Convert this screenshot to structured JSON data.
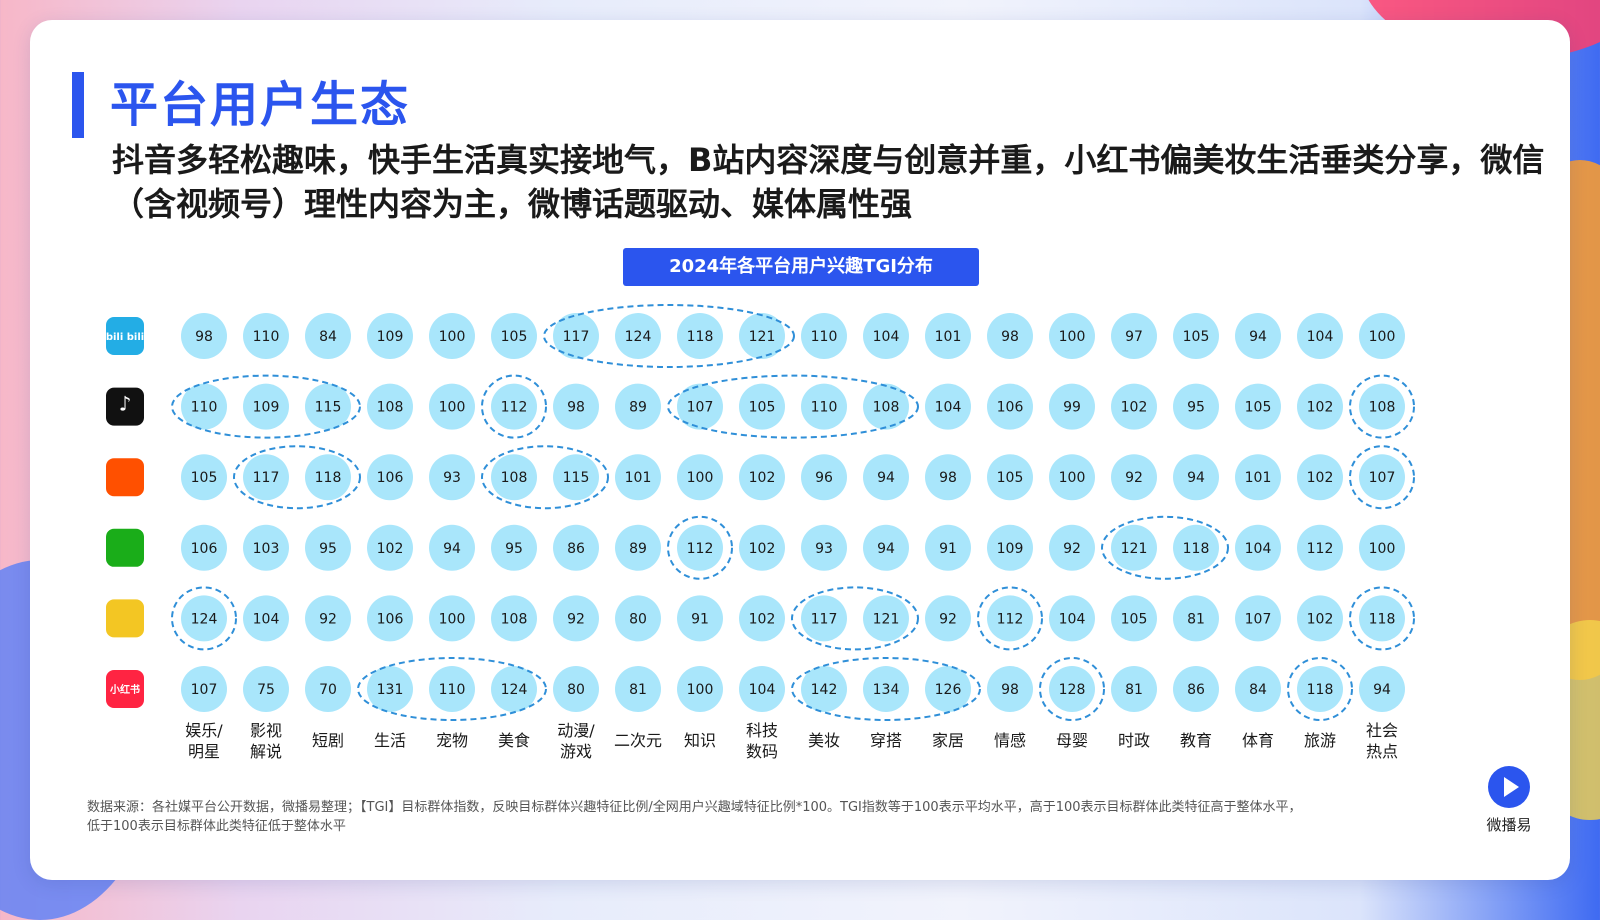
{
  "title": "平台用户生态",
  "subtitle": "抖音多轻松趣味，快手生活真实接地气，B站内容深度与创意并重，小红书偏美妆生活垂类分享，微信（含视频号）理性内容为主，微博话题驱动、媒体属性强",
  "footnote_line1": "数据来源：各社媒平台公开数据，微播易整理；【TGI】目标群体指数，反映目标群体兴趣特征比例/全网用户兴趣域特征比例*100。TGI指数等于100表示平均水平，高于100表示目标群体此类特征高于整体水平，",
  "footnote_line2": "低于100表示目标群体此类特征低于整体水平",
  "logo_text": "微播易",
  "colors": {
    "accent": "#2b55ee",
    "bubble": "#a9e6fb",
    "highlight_ring": "#2f8fd8"
  },
  "chart_data": {
    "type": "table",
    "title": "2024年各平台用户兴趣TGI分布",
    "platforms": [
      {
        "name": "bilibili",
        "icon": "bilibili-icon",
        "icon_text": "bili bili",
        "icon_color": "#23ade5"
      },
      {
        "name": "douyin",
        "icon": "douyin-icon",
        "icon_text": "♪",
        "icon_color": "#111111"
      },
      {
        "name": "kuaishou",
        "icon": "kuaishou-icon",
        "icon_text": "",
        "icon_color": "#ff5000"
      },
      {
        "name": "wechat",
        "icon": "wechat-icon",
        "icon_text": "",
        "icon_color": "#1aad19"
      },
      {
        "name": "weibo",
        "icon": "weibo-icon",
        "icon_text": "",
        "icon_color": "#f3c623"
      },
      {
        "name": "xiaohongshu",
        "icon": "xiaohongshu-icon",
        "icon_text": "小红书",
        "icon_color": "#ff2442"
      }
    ],
    "categories": [
      [
        "娱乐/",
        "明星"
      ],
      [
        "影视",
        "解说"
      ],
      [
        "短剧"
      ],
      [
        "生活"
      ],
      [
        "宠物"
      ],
      [
        "美食"
      ],
      [
        "动漫/",
        "游戏"
      ],
      [
        "二次元"
      ],
      [
        "知识"
      ],
      [
        "科技",
        "数码"
      ],
      [
        "美妆"
      ],
      [
        "穿搭"
      ],
      [
        "家居"
      ],
      [
        "情感"
      ],
      [
        "母婴"
      ],
      [
        "时政"
      ],
      [
        "教育"
      ],
      [
        "体育"
      ],
      [
        "旅游"
      ],
      [
        "社会",
        "热点"
      ]
    ],
    "values": [
      [
        98,
        110,
        84,
        109,
        100,
        105,
        117,
        124,
        118,
        121,
        110,
        104,
        101,
        98,
        100,
        97,
        105,
        94,
        104,
        100
      ],
      [
        110,
        109,
        115,
        108,
        100,
        112,
        98,
        89,
        107,
        105,
        110,
        108,
        104,
        106,
        99,
        102,
        95,
        105,
        102,
        108
      ],
      [
        105,
        117,
        118,
        106,
        93,
        108,
        115,
        101,
        100,
        102,
        96,
        94,
        98,
        105,
        100,
        92,
        94,
        101,
        102,
        107
      ],
      [
        106,
        103,
        95,
        102,
        94,
        95,
        86,
        89,
        112,
        102,
        93,
        94,
        91,
        109,
        92,
        121,
        118,
        104,
        112,
        100
      ],
      [
        124,
        104,
        92,
        106,
        100,
        108,
        92,
        80,
        91,
        102,
        117,
        121,
        92,
        112,
        104,
        105,
        81,
        107,
        102,
        118
      ],
      [
        107,
        75,
        70,
        131,
        110,
        124,
        80,
        81,
        100,
        104,
        142,
        134,
        126,
        98,
        128,
        81,
        86,
        84,
        118,
        94
      ]
    ],
    "highlight_groups": [
      {
        "row": 0,
        "start": 6,
        "end": 9
      },
      {
        "row": 1,
        "start": 0,
        "end": 2
      },
      {
        "row": 1,
        "start": 5,
        "end": 5
      },
      {
        "row": 1,
        "start": 8,
        "end": 11
      },
      {
        "row": 1,
        "start": 19,
        "end": 19
      },
      {
        "row": 2,
        "start": 1,
        "end": 2
      },
      {
        "row": 2,
        "start": 5,
        "end": 6
      },
      {
        "row": 2,
        "start": 19,
        "end": 19
      },
      {
        "row": 3,
        "start": 8,
        "end": 8
      },
      {
        "row": 3,
        "start": 15,
        "end": 16
      },
      {
        "row": 4,
        "start": 0,
        "end": 0
      },
      {
        "row": 4,
        "start": 10,
        "end": 11
      },
      {
        "row": 4,
        "start": 13,
        "end": 13
      },
      {
        "row": 4,
        "start": 19,
        "end": 19
      },
      {
        "row": 5,
        "start": 3,
        "end": 5
      },
      {
        "row": 5,
        "start": 10,
        "end": 12
      },
      {
        "row": 5,
        "start": 14,
        "end": 14
      },
      {
        "row": 5,
        "start": 18,
        "end": 18
      }
    ]
  }
}
